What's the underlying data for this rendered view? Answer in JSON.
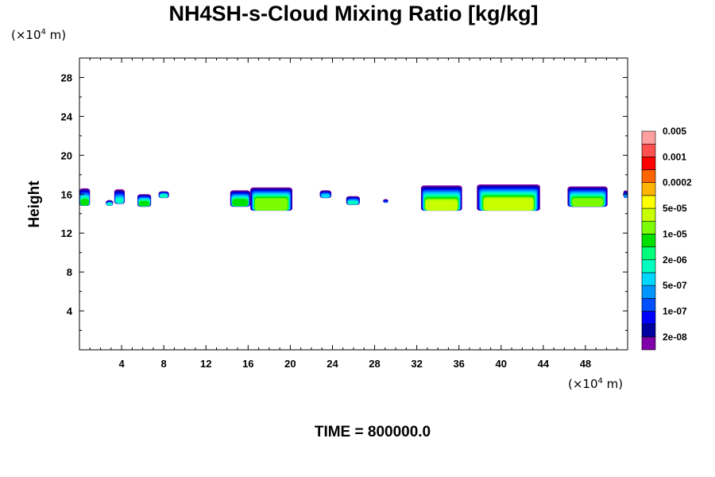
{
  "chart_data": {
    "type": "heatmap",
    "title": "NH4SH-s-Cloud Mixing Ratio [kg/kg]",
    "xlabel": "",
    "ylabel": "Height",
    "x_unit": {
      "prefix": "(×10",
      "exp": "4",
      "suffix": " m)"
    },
    "y_unit": {
      "prefix": "(×10",
      "exp": "4",
      "suffix": " m)"
    },
    "xlim": [
      0,
      52
    ],
    "ylim": [
      0,
      30
    ],
    "x_ticks": [
      4,
      8,
      12,
      16,
      20,
      24,
      28,
      32,
      36,
      40,
      44,
      48
    ],
    "y_ticks": [
      4,
      8,
      12,
      16,
      20,
      24,
      28
    ],
    "x_minor_step": 1,
    "y_minor_step": 2,
    "grid": false,
    "legend_placement": "right",
    "colorbar": {
      "colors": [
        "#7f00a8",
        "#00009e",
        "#0000ff",
        "#0050ff",
        "#0096ff",
        "#00d7ff",
        "#00ffc0",
        "#00ff7a",
        "#00e000",
        "#7cfc00",
        "#c8ff00",
        "#ffff00",
        "#ffb400",
        "#ff6400",
        "#ff0000",
        "#ff5050",
        "#ff9f9f"
      ],
      "labels": [
        {
          "text": "2e-08",
          "after_band": 1
        },
        {
          "text": "1e-07",
          "after_band": 3
        },
        {
          "text": "5e-07",
          "after_band": 5
        },
        {
          "text": "2e-06",
          "after_band": 7
        },
        {
          "text": "1e-05",
          "after_band": 9
        },
        {
          "text": "5e-05",
          "after_band": 11
        },
        {
          "text": "0.0002",
          "after_band": 13
        },
        {
          "text": "0.001",
          "after_band": 15
        },
        {
          "text": "0.005",
          "after_band": 17
        }
      ]
    },
    "cloud_bands": [
      {
        "x0": 0.0,
        "x1": 1.0,
        "y0": 14.8,
        "y1": 16.6,
        "core_y0": 14.9,
        "core_y1": 15.5,
        "max_level": 8
      },
      {
        "x0": 2.5,
        "x1": 3.2,
        "y0": 14.8,
        "y1": 15.4,
        "core_y0": 14.9,
        "core_y1": 15.1,
        "max_level": 6
      },
      {
        "x0": 3.3,
        "x1": 4.3,
        "y0": 15.0,
        "y1": 16.5,
        "core_y0": 15.2,
        "core_y1": 15.6,
        "max_level": 6
      },
      {
        "x0": 5.5,
        "x1": 6.8,
        "y0": 14.7,
        "y1": 16.0,
        "core_y0": 14.9,
        "core_y1": 15.3,
        "max_level": 8
      },
      {
        "x0": 7.5,
        "x1": 8.5,
        "y0": 15.6,
        "y1": 16.3,
        "core_y0": 15.7,
        "core_y1": 16.0,
        "max_level": 6
      },
      {
        "x0": 14.3,
        "x1": 16.2,
        "y0": 14.7,
        "y1": 16.4,
        "core_y0": 14.9,
        "core_y1": 15.5,
        "max_level": 8
      },
      {
        "x0": 16.2,
        "x1": 20.2,
        "y0": 14.3,
        "y1": 16.7,
        "core_y0": 14.4,
        "core_y1": 15.6,
        "max_level": 9
      },
      {
        "x0": 22.8,
        "x1": 23.9,
        "y0": 15.6,
        "y1": 16.4,
        "core_y0": 15.7,
        "core_y1": 16.0,
        "max_level": 5
      },
      {
        "x0": 25.3,
        "x1": 26.6,
        "y0": 14.9,
        "y1": 15.8,
        "core_y0": 15.0,
        "core_y1": 15.3,
        "max_level": 6
      },
      {
        "x0": 28.8,
        "x1": 29.3,
        "y0": 15.1,
        "y1": 15.5,
        "core_y0": 15.2,
        "core_y1": 15.3,
        "max_level": 3
      },
      {
        "x0": 32.4,
        "x1": 36.3,
        "y0": 14.3,
        "y1": 16.9,
        "core_y0": 14.4,
        "core_y1": 15.4,
        "max_level": 10
      },
      {
        "x0": 37.7,
        "x1": 43.7,
        "y0": 14.3,
        "y1": 17.0,
        "core_y0": 14.4,
        "core_y1": 15.6,
        "max_level": 10
      },
      {
        "x0": 46.3,
        "x1": 50.1,
        "y0": 14.7,
        "y1": 16.8,
        "core_y0": 14.8,
        "core_y1": 15.6,
        "max_level": 9
      },
      {
        "x0": 51.6,
        "x1": 52.0,
        "y0": 15.6,
        "y1": 16.4,
        "core_y0": 15.7,
        "core_y1": 16.0,
        "max_level": 4
      }
    ]
  },
  "time_label": "TIME = 800000.0"
}
